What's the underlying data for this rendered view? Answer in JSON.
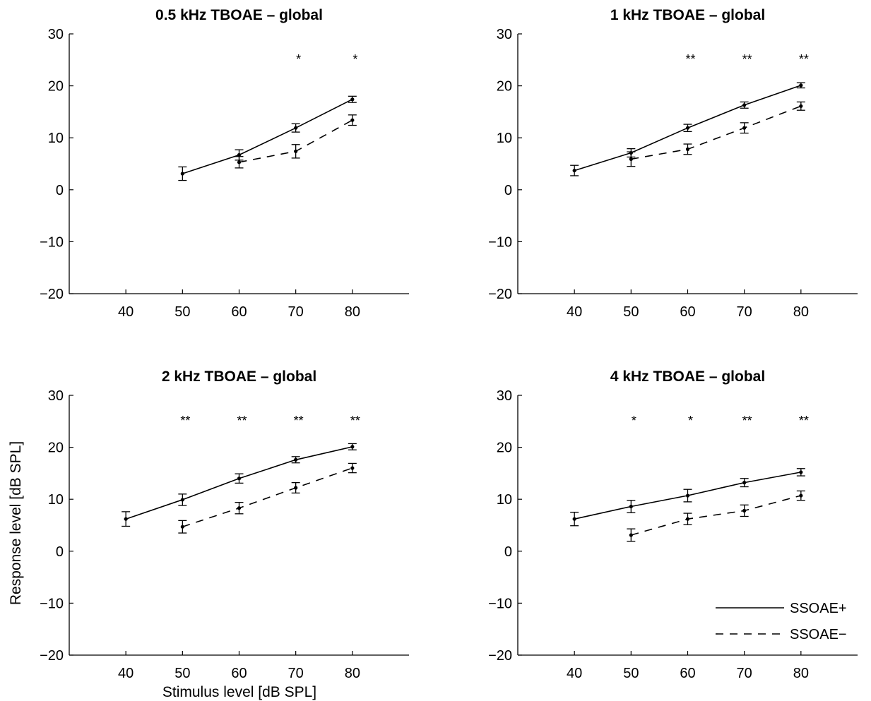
{
  "figure": {
    "xlabel": "Stimulus level [dB SPL]",
    "ylabel": "Response level [dB SPL]"
  },
  "legend": {
    "placement": "lower-right of bottom-right panel",
    "entries": [
      {
        "label": "SSOAE+",
        "style": "solid"
      },
      {
        "label": "SSOAE−",
        "style": "dashed"
      }
    ]
  },
  "chart_data": [
    {
      "type": "line",
      "title": "0.5 kHz TBOAE – global",
      "xlabel": "",
      "ylabel": "",
      "xlim": [
        30,
        90
      ],
      "ylim": [
        -20,
        30
      ],
      "xticks": [
        40,
        50,
        60,
        70,
        80
      ],
      "yticks": [
        30,
        20,
        10,
        0,
        -10,
        -20
      ],
      "grid": false,
      "series": [
        {
          "name": "SSOAE+",
          "style": "solid",
          "points": [
            {
              "x": 50,
              "y": 3.1,
              "err": 1.3
            },
            {
              "x": 60,
              "y": 6.7,
              "err": 1.0
            },
            {
              "x": 70,
              "y": 11.9,
              "err": 0.8
            },
            {
              "x": 80,
              "y": 17.4,
              "err": 0.6
            }
          ]
        },
        {
          "name": "SSOAE−",
          "style": "dashed",
          "points": [
            {
              "x": 60,
              "y": 5.3,
              "err": 1.1
            },
            {
              "x": 70,
              "y": 7.4,
              "err": 1.3
            },
            {
              "x": 80,
              "y": 13.4,
              "err": 1.0
            }
          ]
        }
      ],
      "significance": [
        {
          "x": 70,
          "label": "*"
        },
        {
          "x": 80,
          "label": "*"
        }
      ]
    },
    {
      "type": "line",
      "title": "1 kHz TBOAE – global",
      "xlabel": "",
      "ylabel": "",
      "xlim": [
        30,
        90
      ],
      "ylim": [
        -20,
        30
      ],
      "xticks": [
        40,
        50,
        60,
        70,
        80
      ],
      "yticks": [
        30,
        20,
        10,
        0,
        -10,
        -20
      ],
      "grid": false,
      "series": [
        {
          "name": "SSOAE+",
          "style": "solid",
          "points": [
            {
              "x": 40,
              "y": 3.7,
              "err": 1.0
            },
            {
              "x": 50,
              "y": 7.1,
              "err": 0.8
            },
            {
              "x": 60,
              "y": 11.9,
              "err": 0.7
            },
            {
              "x": 70,
              "y": 16.3,
              "err": 0.6
            },
            {
              "x": 80,
              "y": 20.1,
              "err": 0.5
            }
          ]
        },
        {
          "name": "SSOAE−",
          "style": "dashed",
          "points": [
            {
              "x": 50,
              "y": 5.9,
              "err": 1.4
            },
            {
              "x": 60,
              "y": 7.8,
              "err": 1.0
            },
            {
              "x": 70,
              "y": 11.9,
              "err": 1.0
            },
            {
              "x": 80,
              "y": 16.1,
              "err": 0.8
            }
          ]
        }
      ],
      "significance": [
        {
          "x": 60,
          "label": "**"
        },
        {
          "x": 70,
          "label": "**"
        },
        {
          "x": 80,
          "label": "**"
        }
      ]
    },
    {
      "type": "line",
      "title": "2 kHz TBOAE – global",
      "xlabel": "",
      "ylabel": "",
      "xlim": [
        30,
        90
      ],
      "ylim": [
        -20,
        30
      ],
      "xticks": [
        40,
        50,
        60,
        70,
        80
      ],
      "yticks": [
        30,
        20,
        10,
        0,
        -10,
        -20
      ],
      "grid": false,
      "series": [
        {
          "name": "SSOAE+",
          "style": "solid",
          "points": [
            {
              "x": 40,
              "y": 6.2,
              "err": 1.4
            },
            {
              "x": 50,
              "y": 9.9,
              "err": 1.1
            },
            {
              "x": 60,
              "y": 14.0,
              "err": 0.9
            },
            {
              "x": 70,
              "y": 17.6,
              "err": 0.6
            },
            {
              "x": 80,
              "y": 20.1,
              "err": 0.6
            }
          ]
        },
        {
          "name": "SSOAE−",
          "style": "dashed",
          "points": [
            {
              "x": 50,
              "y": 4.7,
              "err": 1.2
            },
            {
              "x": 60,
              "y": 8.3,
              "err": 1.1
            },
            {
              "x": 70,
              "y": 12.2,
              "err": 1.0
            },
            {
              "x": 80,
              "y": 16.0,
              "err": 0.9
            }
          ]
        }
      ],
      "significance": [
        {
          "x": 50,
          "label": "**"
        },
        {
          "x": 60,
          "label": "**"
        },
        {
          "x": 70,
          "label": "**"
        },
        {
          "x": 80,
          "label": "**"
        }
      ]
    },
    {
      "type": "line",
      "title": "4 kHz TBOAE – global",
      "xlabel": "",
      "ylabel": "",
      "xlim": [
        30,
        90
      ],
      "ylim": [
        -20,
        30
      ],
      "xticks": [
        40,
        50,
        60,
        70,
        80
      ],
      "yticks": [
        30,
        20,
        10,
        0,
        -10,
        -20
      ],
      "grid": false,
      "series": [
        {
          "name": "SSOAE+",
          "style": "solid",
          "points": [
            {
              "x": 40,
              "y": 6.2,
              "err": 1.3
            },
            {
              "x": 50,
              "y": 8.6,
              "err": 1.2
            },
            {
              "x": 60,
              "y": 10.7,
              "err": 1.2
            },
            {
              "x": 70,
              "y": 13.2,
              "err": 0.8
            },
            {
              "x": 80,
              "y": 15.2,
              "err": 0.7
            }
          ]
        },
        {
          "name": "SSOAE−",
          "style": "dashed",
          "points": [
            {
              "x": 50,
              "y": 3.1,
              "err": 1.2
            },
            {
              "x": 60,
              "y": 6.2,
              "err": 1.1
            },
            {
              "x": 70,
              "y": 7.8,
              "err": 1.1
            },
            {
              "x": 80,
              "y": 10.7,
              "err": 0.9
            }
          ]
        }
      ],
      "significance": [
        {
          "x": 50,
          "label": "*"
        },
        {
          "x": 60,
          "label": "*"
        },
        {
          "x": 70,
          "label": "**"
        },
        {
          "x": 80,
          "label": "**"
        }
      ]
    }
  ]
}
